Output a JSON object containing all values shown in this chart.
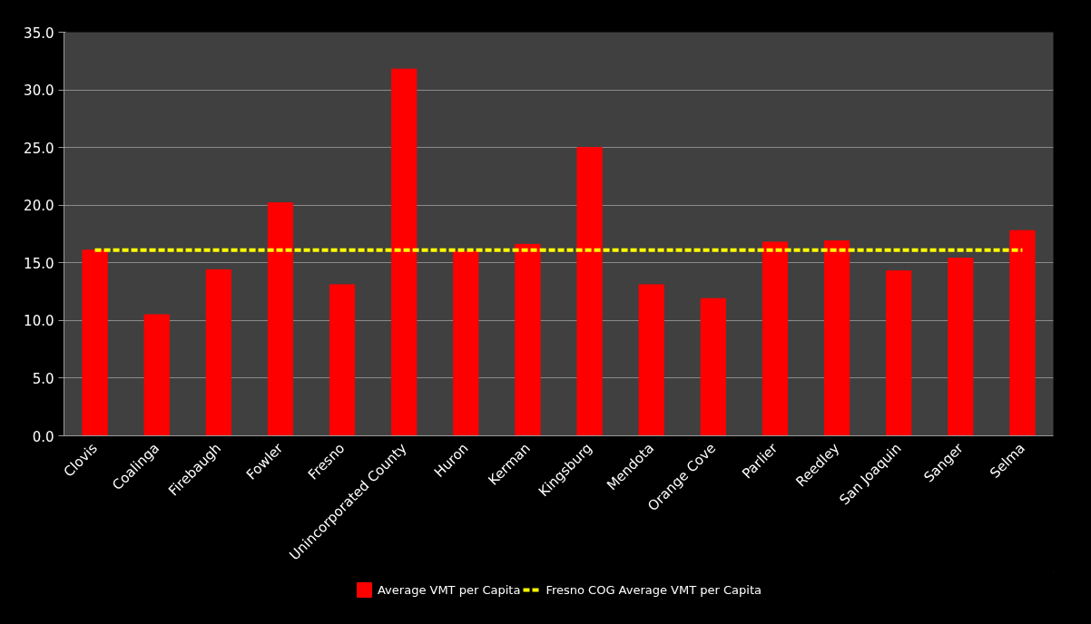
{
  "chart_data": {
    "type": "bar",
    "categories": [
      "Clovis",
      "Coalinga",
      "Firebaugh",
      "Fowler",
      "Fresno",
      "Unincorporated County",
      "Huron",
      "Kerman",
      "Kingsburg",
      "Mendota",
      "Orange Cove",
      "Parlier",
      "Reedley",
      "San Joaquin",
      "Sanger",
      "Selma"
    ],
    "series": [
      {
        "name": "Average VMT per Capita",
        "color": "#ff0000",
        "values": [
          16.1,
          10.5,
          14.4,
          20.2,
          13.1,
          31.8,
          16.0,
          16.6,
          25.0,
          13.1,
          11.9,
          16.8,
          16.9,
          14.3,
          15.4,
          17.8
        ]
      },
      {
        "name": "Fresno COG Average VMT per Capita",
        "type": "line",
        "color": "#ffff00",
        "line_style": "dashed",
        "values": [
          16.1,
          16.1,
          16.1,
          16.1,
          16.1,
          16.1,
          16.1,
          16.1,
          16.1,
          16.1,
          16.1,
          16.1,
          16.1,
          16.1,
          16.1,
          16.1
        ]
      }
    ],
    "ylim": [
      0,
      35
    ],
    "yticks": [
      {
        "value": 0,
        "label": "0.0"
      },
      {
        "value": 5,
        "label": "5.0"
      },
      {
        "value": 10,
        "label": "10.0"
      },
      {
        "value": 15,
        "label": "15.0"
      },
      {
        "value": 20,
        "label": "20.0"
      },
      {
        "value": 25,
        "label": "25.0"
      },
      {
        "value": 30,
        "label": "30.0"
      },
      {
        "value": 35,
        "label": "35.0"
      }
    ],
    "grid": "y",
    "legend": "bottom"
  }
}
